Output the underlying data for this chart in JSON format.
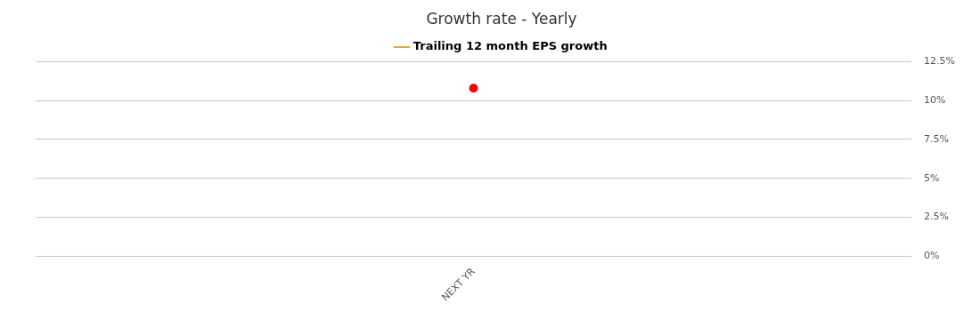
{
  "chart_data": {
    "type": "line",
    "title": "Growth rate - Yearly",
    "categories": [
      "NEXT YR"
    ],
    "series": [
      {
        "name": "Trailing 12 month EPS growth",
        "color": "#e0ac1c",
        "colors": [
          "#ff0000"
        ],
        "values": [
          10.8
        ]
      }
    ],
    "ylim": [
      0,
      12.5
    ],
    "yticks": [
      {
        "value": 0,
        "label": "0%"
      },
      {
        "value": 2.5,
        "label": "2.5%"
      },
      {
        "value": 5,
        "label": "5%"
      },
      {
        "value": 7.5,
        "label": "7.5%"
      },
      {
        "value": 10,
        "label": "10%"
      },
      {
        "value": 12.5,
        "label": "12.5%"
      }
    ],
    "grid": "y",
    "legend": "top",
    "marker": "circle",
    "line_style": "solid"
  }
}
